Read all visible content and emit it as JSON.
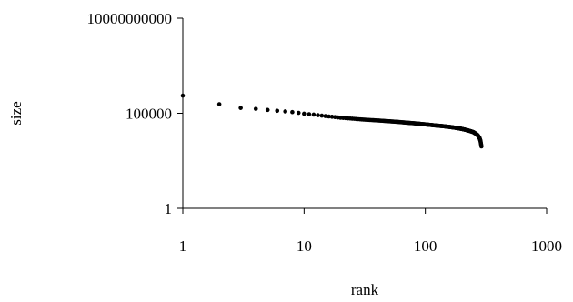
{
  "chart_data": {
    "type": "scatter",
    "title": "",
    "xlabel": "rank",
    "ylabel": "size",
    "x_scale": "log",
    "y_scale": "log",
    "xlim": [
      1,
      1000
    ],
    "ylim": [
      1,
      10000000000
    ],
    "x_ticks": [
      {
        "value": 1,
        "label": "1"
      },
      {
        "value": 10,
        "label": "10"
      },
      {
        "value": 100,
        "label": "100"
      },
      {
        "value": 1000,
        "label": "1000"
      }
    ],
    "y_ticks": [
      {
        "value": 1,
        "label": "1"
      },
      {
        "value": 100000,
        "label": "100000"
      },
      {
        "value": 10000000000,
        "label": "10000000000"
      }
    ],
    "grid": false,
    "legend": "none",
    "marker_color": "#000000",
    "series": [
      {
        "x": [
          1,
          2,
          3,
          4,
          5,
          6,
          7,
          8,
          9,
          10,
          12,
          14,
          16,
          18,
          20,
          25,
          30,
          40,
          50,
          60,
          70,
          80,
          100,
          120,
          140,
          160,
          180,
          200,
          220,
          240,
          250,
          260,
          270,
          280,
          285,
          290
        ],
        "y": [
          850000,
          300000,
          190000,
          170000,
          150000,
          135000,
          125000,
          115000,
          105000,
          95000,
          85000,
          75000,
          68000,
          63000,
          58000,
          52000,
          47000,
          42000,
          38000,
          35000,
          32000,
          30000,
          26000,
          23000,
          21000,
          19000,
          17000,
          15000,
          13000,
          11000,
          10000,
          8500,
          7000,
          5000,
          3500,
          1800
        ]
      }
    ]
  }
}
